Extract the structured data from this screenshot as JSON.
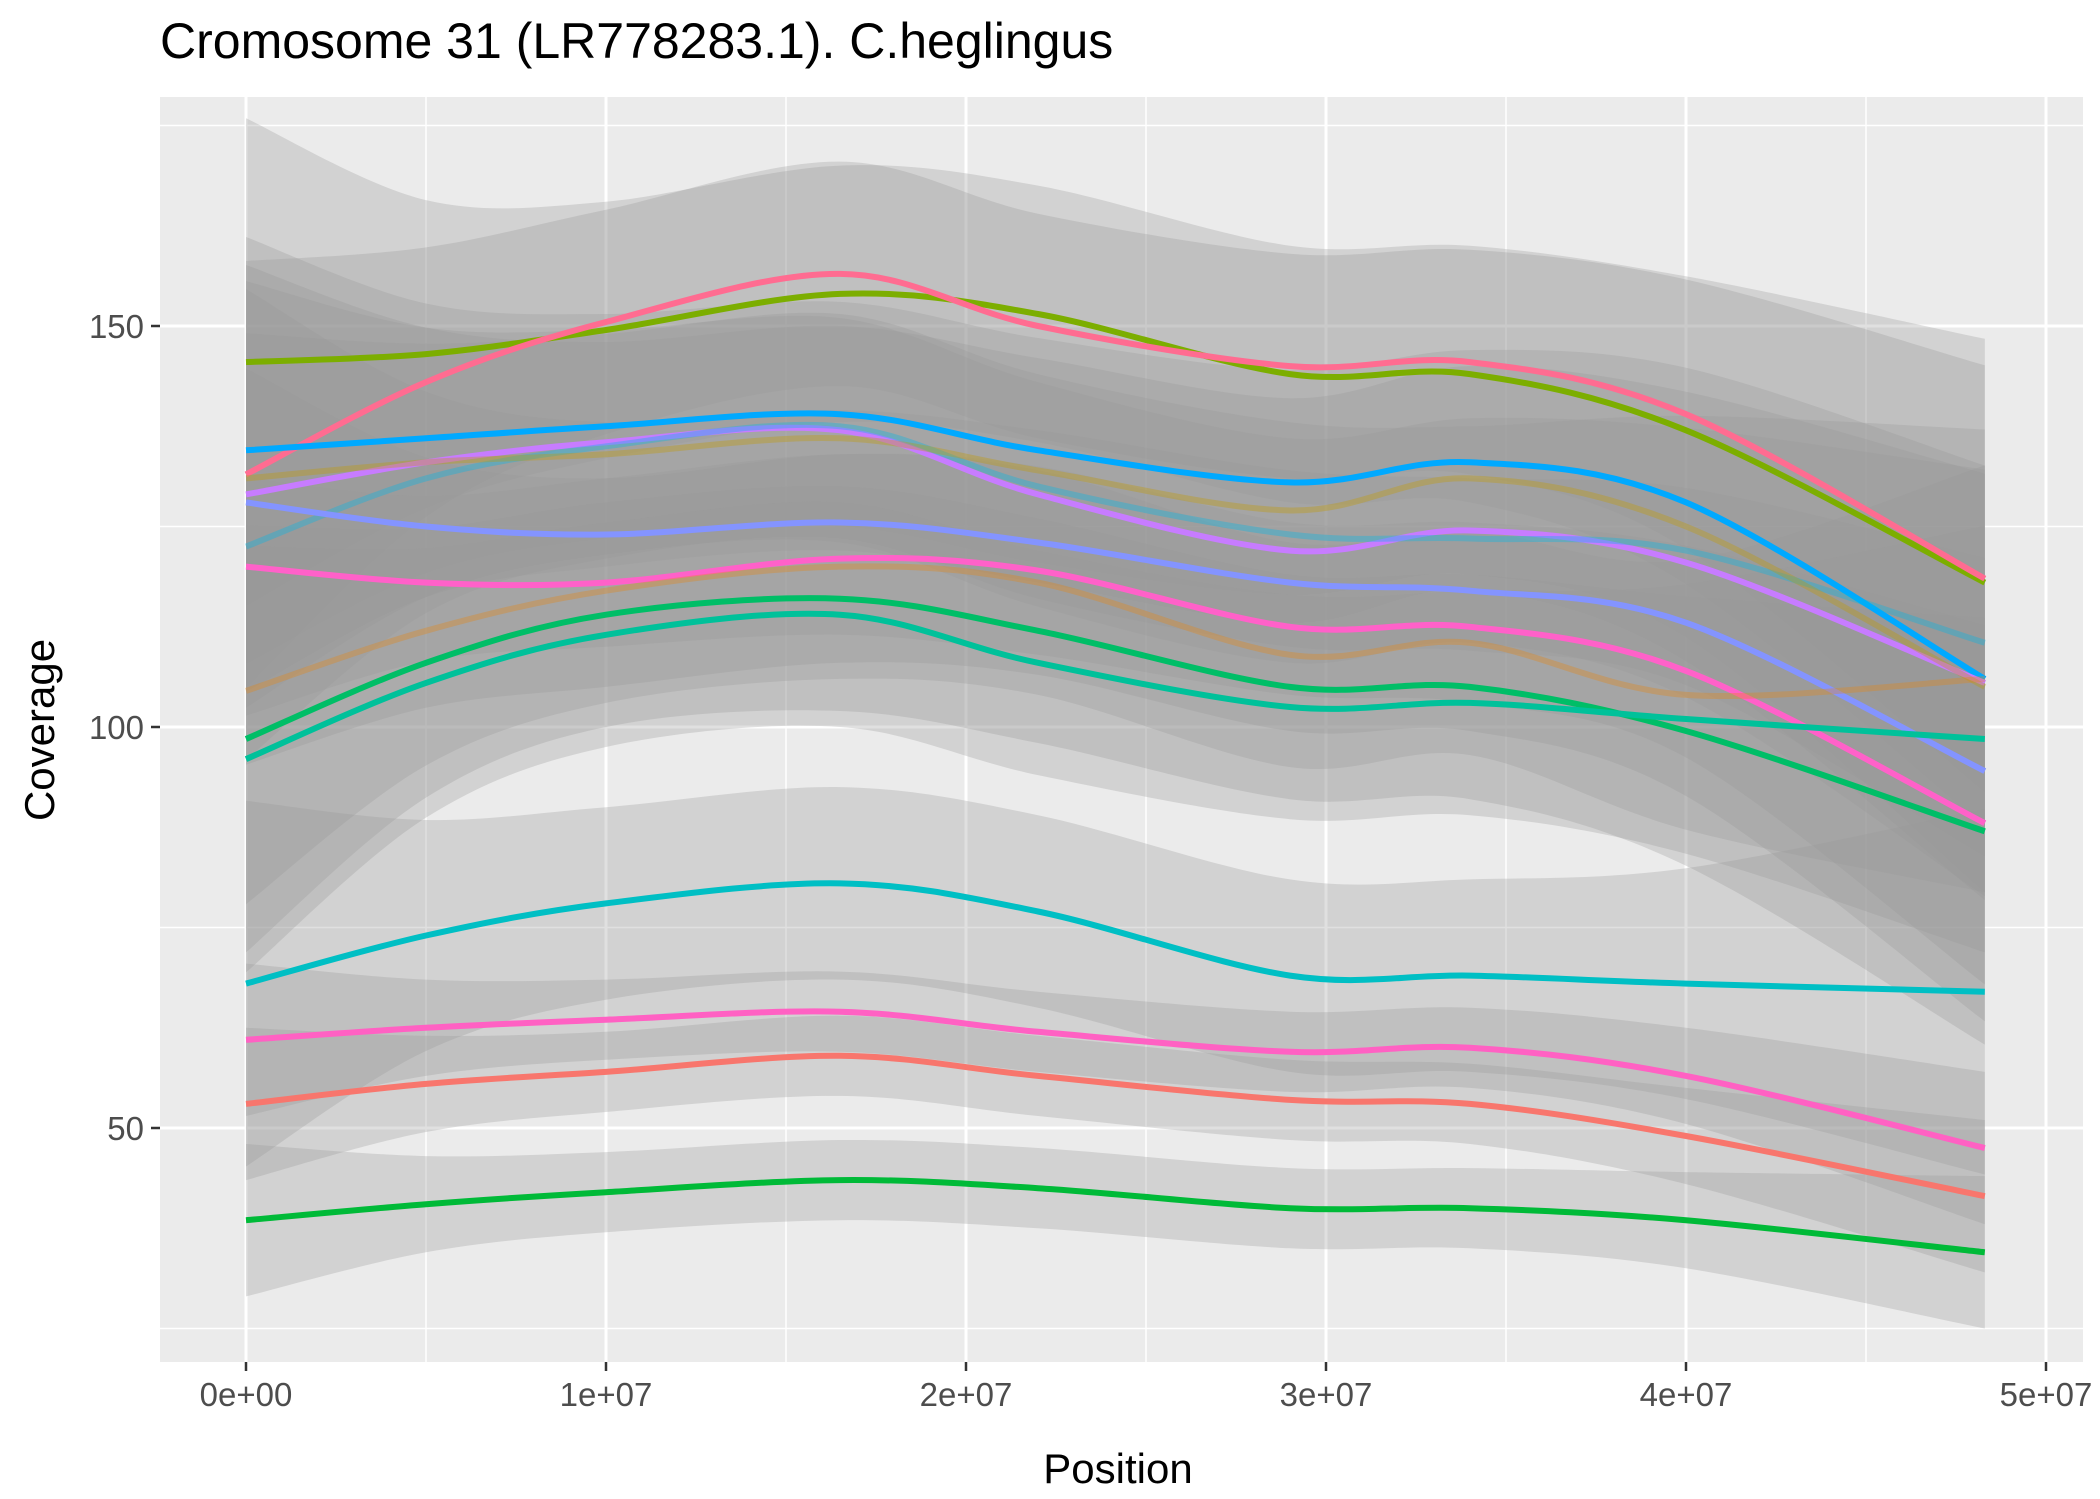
{
  "chart_data": {
    "type": "line",
    "title": "Cromosome 31 (LR778283.1). C.heglingus",
    "xlabel": "Position",
    "ylabel": "Coverage",
    "xlim": [
      0,
      50000000
    ],
    "ylim": [
      25,
      175
    ],
    "x_ticks": [
      {
        "value": 0,
        "label": "0e+00"
      },
      {
        "value": 10000000,
        "label": "1e+07"
      },
      {
        "value": 20000000,
        "label": "2e+07"
      },
      {
        "value": 30000000,
        "label": "3e+07"
      },
      {
        "value": 40000000,
        "label": "4e+07"
      },
      {
        "value": 50000000,
        "label": "5e+07"
      }
    ],
    "y_ticks": [
      {
        "value": 50,
        "label": "50"
      },
      {
        "value": 100,
        "label": "100"
      },
      {
        "value": 150,
        "label": "150"
      }
    ],
    "grid": true,
    "legend": "none",
    "x": [
      0,
      5000000,
      10000000,
      16500000,
      22000000,
      29000000,
      34000000,
      40000000,
      48300000
    ],
    "series": [
      {
        "color": "#7CAE00",
        "values": [
          145.5,
          146.5,
          149.5,
          154,
          151.5,
          144,
          144,
          137,
          118
        ],
        "band": 16
      },
      {
        "color": "#FF6C91",
        "values": [
          131.5,
          143,
          150.5,
          156.5,
          150,
          145,
          145.5,
          139,
          118.5
        ],
        "band": 14
      },
      {
        "color": "#00A9FF",
        "values": [
          134.5,
          136,
          137.5,
          139,
          134.5,
          130.5,
          133,
          128,
          106
        ],
        "band": 14
      },
      {
        "color": "#C77CFF",
        "values": [
          129,
          133,
          135.5,
          137,
          129,
          122,
          124.5,
          120.5,
          105.5
        ],
        "band": 14
      },
      {
        "color": "#00B8E7",
        "values": [
          122.5,
          131,
          135,
          137.5,
          130,
          124,
          123.5,
          122,
          110.5
        ],
        "band": 14,
        "faded": true
      },
      {
        "color": "#C49A00",
        "values": [
          131,
          133,
          134,
          136,
          132,
          127,
          131,
          125,
          105
        ],
        "band": 14,
        "faded": true
      },
      {
        "color": "#8494FF",
        "values": [
          128,
          125,
          124,
          125.5,
          123,
          118,
          117,
          113,
          94.5
        ],
        "band": 14
      },
      {
        "color": "#FF61C9",
        "values": [
          120,
          118,
          118,
          121,
          119.5,
          112.5,
          112.5,
          107,
          88
        ],
        "band": 13
      },
      {
        "color": "#E68613",
        "values": [
          104.5,
          112,
          117,
          120,
          118,
          109,
          110.5,
          104,
          106
        ],
        "band": 14,
        "faded": true
      },
      {
        "color": "#00BE67",
        "values": [
          98.5,
          108,
          114,
          116,
          112,
          105,
          105,
          99.5,
          87
        ],
        "band": 14
      },
      {
        "color": "#00C19A",
        "values": [
          96,
          105.5,
          111.5,
          114,
          108,
          102.5,
          103,
          101,
          98.5
        ],
        "band": 14
      },
      {
        "color": "#00BFC4",
        "values": [
          68,
          74,
          78,
          80.5,
          77,
          69,
          69,
          68,
          67
        ],
        "band": 12
      },
      {
        "color": "#FF61C3",
        "values": [
          61,
          62.5,
          63.5,
          64.5,
          62,
          59.5,
          60,
          56.5,
          47.5
        ],
        "band": 5
      },
      {
        "color": "#F8766D",
        "values": [
          53,
          55.5,
          57,
          59,
          56.5,
          53.5,
          53,
          49,
          41.5
        ],
        "band": 5
      },
      {
        "color": "#00BA38",
        "values": [
          38.5,
          40.5,
          42,
          43.5,
          42.5,
          40,
          40,
          38.5,
          34.5
        ],
        "band": 5
      }
    ]
  }
}
